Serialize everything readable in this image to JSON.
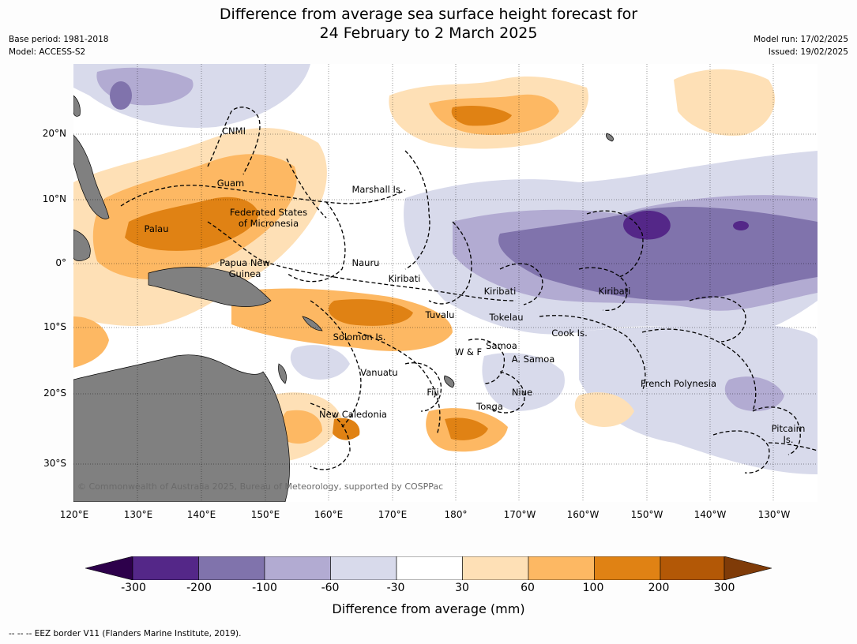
{
  "title": {
    "line1": "Difference from average sea surface height forecast for",
    "line2": "24 February to 2 March 2025"
  },
  "meta": {
    "base_period": "Base period: 1981-2018",
    "model": "Model: ACCESS-S2",
    "model_run": "Model run: 17/02/2025",
    "issued": "Issued: 19/02/2025"
  },
  "axes": {
    "lat_labels": [
      "20°N",
      "10°N",
      "0°",
      "10°S",
      "20°S",
      "30°S"
    ],
    "lon_labels": [
      "120°E",
      "130°E",
      "140°E",
      "150°E",
      "160°E",
      "170°E",
      "180°",
      "170°W",
      "160°W",
      "150°W",
      "140°W",
      "130°W"
    ]
  },
  "places": {
    "cnmi": "CNMI",
    "guam": "Guam",
    "marshall": "Marshall Is.",
    "fsm": "Federated States\nof Micronesia",
    "palau": "Palau",
    "png": "Papua New\nGuinea",
    "nauru": "Nauru",
    "kiribati_w": "Kiribati",
    "kiribati_c": "Kiribati",
    "kiribati_e": "Kiribati",
    "tuvalu": "Tuvalu",
    "tokelau": "Tokelau",
    "solomon": "Solomon Is.",
    "cook": "Cook Is.",
    "samoa": "Samoa",
    "wf": "W & F",
    "asamoa": "A. Samoa",
    "vanuatu": "Vanuatu",
    "fiji": "Fiji",
    "niue": "Niue",
    "tonga": "Tonga",
    "frpoly": "French Polynesia",
    "newcal": "New Caledonia",
    "pitcairn": "Pitcairn\nIs."
  },
  "copyright": "© Commonwealth of Australia 2025, Bureau of Meteorology, supported by COSPPac",
  "colorbar": {
    "ticks": [
      "-300",
      "-200",
      "-100",
      "-60",
      "-30",
      "30",
      "60",
      "100",
      "200",
      "300"
    ],
    "label": "Difference from average (mm)",
    "colors": {
      "below": "#2d004b",
      "c1": "#542788",
      "c2": "#8073ac",
      "c3": "#b2abd2",
      "c4": "#d8daeb",
      "c5": "#ffffff",
      "c6": "#fee0b6",
      "c7": "#fdb863",
      "c8": "#e08214",
      "c9": "#b35806",
      "above": "#7f3b08"
    }
  },
  "legend_footer": "--  --  -- EEZ border V11 (Flanders Marine Institute, 2019).",
  "colors": {
    "land": "#808080",
    "eez_border": "#000000"
  }
}
